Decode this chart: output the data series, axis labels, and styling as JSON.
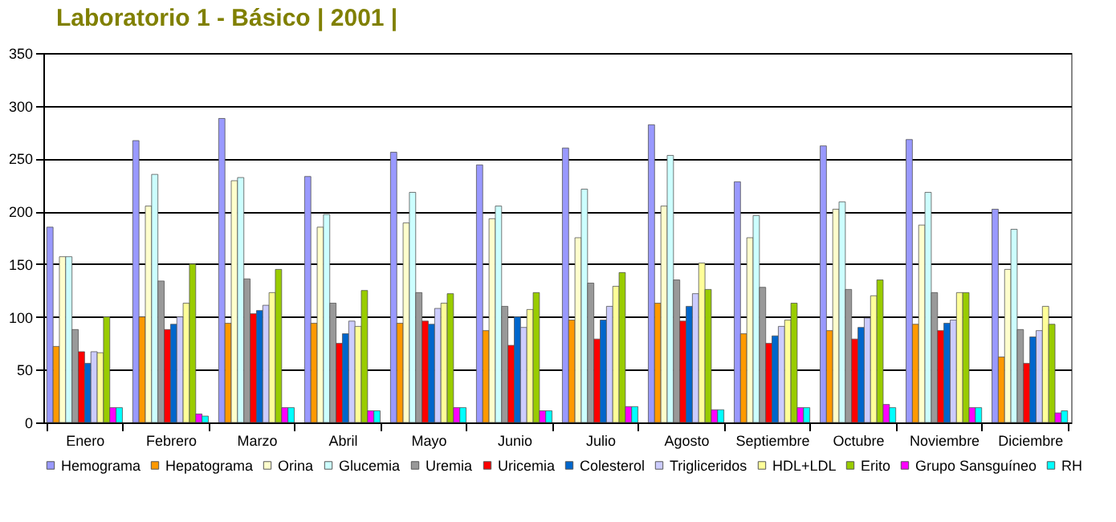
{
  "chart_data": {
    "type": "bar",
    "title": "Laboratorio 1 - Básico | 2001 |",
    "categories": [
      "Enero",
      "Febrero",
      "Marzo",
      "Abril",
      "Mayo",
      "Junio",
      "Julio",
      "Agosto",
      "Septiembre",
      "Octubre",
      "Noviembre",
      "Diciembre"
    ],
    "series": [
      {
        "name": "Hemograma",
        "color": "#9999ff",
        "values": [
          185,
          267,
          288,
          233,
          256,
          244,
          260,
          282,
          228,
          262,
          268,
          202
        ]
      },
      {
        "name": "Hepatograma",
        "color": "#ff9900",
        "values": [
          72,
          100,
          94,
          94,
          94,
          87,
          97,
          113,
          84,
          87,
          93,
          62
        ]
      },
      {
        "name": "Orina",
        "color": "#ffffcc",
        "values": [
          157,
          205,
          229,
          185,
          189,
          193,
          175,
          205,
          175,
          202,
          187,
          145
        ]
      },
      {
        "name": "Glucemia",
        "color": "#ccffff",
        "values": [
          157,
          235,
          232,
          197,
          218,
          205,
          221,
          253,
          196,
          209,
          218,
          183
        ]
      },
      {
        "name": "Uremia",
        "color": "#999999",
        "values": [
          88,
          134,
          136,
          113,
          123,
          110,
          132,
          135,
          128,
          126,
          123,
          88
        ]
      },
      {
        "name": "Uricemia",
        "color": "#ff0000",
        "values": [
          67,
          88,
          103,
          75,
          96,
          73,
          79,
          96,
          75,
          79,
          87,
          56
        ]
      },
      {
        "name": "Colesterol",
        "color": "#0066cc",
        "values": [
          56,
          93,
          106,
          84,
          93,
          100,
          97,
          110,
          82,
          90,
          94,
          81
        ]
      },
      {
        "name": "Trigliceridos",
        "color": "#ccccff",
        "values": [
          67,
          100,
          111,
          96,
          108,
          90,
          110,
          122,
          91,
          99,
          97,
          87
        ]
      },
      {
        "name": "HDL+LDL",
        "color": "#ffff99",
        "values": [
          66,
          113,
          123,
          91,
          113,
          107,
          129,
          151,
          97,
          120,
          123,
          110
        ]
      },
      {
        "name": "Erito",
        "color": "#99cc00",
        "values": [
          100,
          150,
          145,
          125,
          122,
          123,
          142,
          126,
          113,
          135,
          123,
          93
        ]
      },
      {
        "name": "Grupo Sansguíneo",
        "color": "#ff00ff",
        "values": [
          14,
          8,
          14,
          11,
          14,
          11,
          15,
          12,
          14,
          17,
          14,
          9
        ]
      },
      {
        "name": "RH",
        "color": "#00ffff",
        "values": [
          14,
          6,
          14,
          11,
          14,
          11,
          15,
          12,
          14,
          14,
          14,
          11
        ]
      }
    ],
    "ylim": [
      0,
      350
    ],
    "yticks": [
      0,
      50,
      100,
      150,
      200,
      250,
      300,
      350
    ],
    "grid": "y",
    "legend": "bottom"
  }
}
